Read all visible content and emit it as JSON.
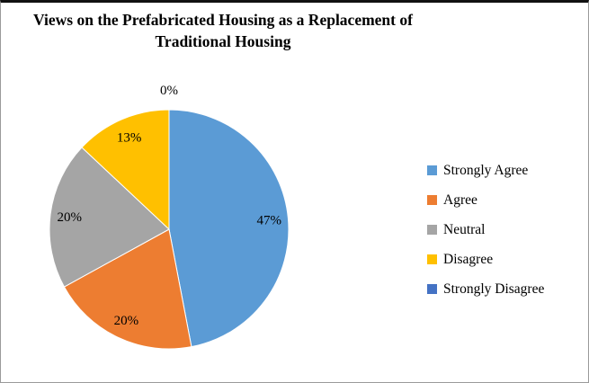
{
  "chart_data": {
    "type": "pie",
    "title": "Views on the Prefabricated Housing as a Replacement of Traditional Housing",
    "labels": [
      "Strongly Agree",
      "Agree",
      "Neutral",
      "Disagree",
      "Strongly Disagree"
    ],
    "values": [
      47,
      20,
      20,
      13,
      0
    ],
    "data_labels": [
      "47%",
      "20%",
      "20%",
      "13%",
      "0%"
    ],
    "unit": "%",
    "colors": [
      "#5B9BD5",
      "#ED7D31",
      "#A5A5A5",
      "#FFC000",
      "#4472C4"
    ],
    "legend_position": "right",
    "start_angle_deg": 0,
    "direction": "clockwise",
    "label_color": "#000000",
    "background": "#ffffff"
  }
}
